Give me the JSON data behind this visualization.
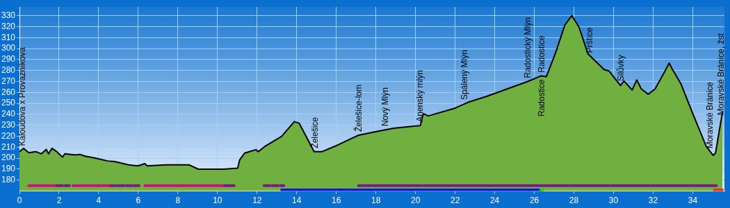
{
  "chart_data": {
    "type": "area",
    "x": [
      0,
      0.21,
      0.47,
      0.82,
      1.11,
      1.35,
      1.47,
      1.64,
      1.88,
      2.17,
      2.29,
      2.81,
      3.05,
      3.28,
      3.87,
      4.45,
      4.81,
      5.51,
      5.98,
      6.33,
      6.45,
      7.39,
      8.56,
      9.03,
      9.26,
      10.32,
      11.02,
      11.12,
      11.37,
      11.61,
      11.94,
      12.06,
      12.41,
      13.24,
      13.88,
      14.12,
      14.88,
      15.29,
      15.94,
      17.12,
      17.94,
      18.88,
      20.0,
      20.24,
      20.39,
      20.65,
      21.94,
      22.65,
      23.59,
      25.67,
      26.32,
      26.61,
      27.08,
      27.54,
      27.89,
      28.25,
      28.71,
      29.53,
      29.77,
      30.35,
      30.53,
      30.94,
      31.17,
      31.4,
      31.75,
      32.1,
      32.57,
      32.81,
      32.98,
      33.39,
      33.98,
      34.68,
      35.03,
      35.15,
      35.38,
      35.5
    ],
    "series": [
      {
        "color": "#6fb040",
        "values": [
          206,
          209,
          205,
          206,
          204,
          208,
          204,
          209,
          206,
          201,
          204,
          203,
          203.5,
          202,
          200,
          197.5,
          197,
          194,
          193,
          195,
          193,
          194,
          194,
          190,
          190,
          190,
          191,
          198.5,
          204.7,
          206,
          207.8,
          206,
          211,
          220,
          233.4,
          232,
          206,
          206,
          211,
          221,
          224,
          227.3,
          229.3,
          229.7,
          240.6,
          238.6,
          245.3,
          251,
          256.4,
          270,
          275,
          274.5,
          296.5,
          321.4,
          330,
          319.8,
          295.1,
          280.7,
          279.6,
          266.3,
          270.4,
          262.2,
          271.4,
          263.2,
          258.4,
          263.2,
          278.6,
          286.8,
          280.7,
          268.3,
          241.6,
          210.8,
          202.6,
          204.7,
          229.3,
          241.6
        ]
      },
      {
        "type": "line",
        "color": "#c8157a",
        "x": [
          0.47,
          1.88,
          2.3,
          2.7,
          4.63,
          5.5,
          6.33,
          10.38
        ],
        "values": [
          175,
          175,
          null,
          175,
          175,
          null,
          175,
          175
        ]
      },
      {
        "type": "line",
        "color": "#7b1a86",
        "x": [
          1.88,
          2.17,
          2.23,
          2.29,
          2.52,
          3.5,
          4.63,
          4.87,
          4.92,
          4.98,
          5.28,
          5.33,
          5.39,
          5.69,
          5.75,
          5.8,
          6.04,
          8.2,
          10.38,
          10.84,
          11.6,
          12.35,
          12.65,
          12.7,
          12.76,
          13.06,
          13.12,
          13.18,
          13.35,
          15.2,
          17.12,
          20.29,
          20.35,
          20.41,
          35.2
        ],
        "values": [
          175,
          175,
          null,
          175,
          175,
          null,
          175,
          175,
          null,
          175,
          175,
          null,
          175,
          175,
          null,
          175,
          175,
          null,
          175,
          175,
          null,
          175,
          175,
          null,
          175,
          175,
          null,
          175,
          175,
          null,
          175,
          175,
          null,
          175,
          175
        ]
      },
      {
        "type": "line",
        "color": "#0a14e6",
        "x": [
          13.24,
          26.32
        ],
        "values": [
          171,
          171
        ]
      },
      {
        "type": "line",
        "color": "#22c81e",
        "x": [
          26.32,
          26.45
        ],
        "values": [
          171,
          171
        ]
      },
      {
        "type": "line",
        "color": "#e8321e",
        "x": [
          35.09,
          35.5
        ],
        "values": [
          171,
          171
        ]
      }
    ],
    "xlim": [
      0,
      35.6
    ],
    "ylim": [
      170,
      338
    ],
    "xticks": [
      0,
      2,
      4,
      6,
      8,
      10,
      12,
      14,
      16,
      18,
      20,
      22,
      24,
      26,
      28,
      30,
      32,
      34
    ],
    "yticks": [
      180,
      190,
      200,
      210,
      220,
      230,
      240,
      250,
      260,
      270,
      280,
      290,
      300,
      310,
      320,
      330
    ],
    "grid": true,
    "legend": false,
    "annotations": [
      {
        "text": "Kaloudova x Provazníkova",
        "x": 0.15,
        "y": 208
      },
      {
        "text": "Želešice",
        "x": 14.95,
        "y": 206
      },
      {
        "text": "Želešice-lom",
        "x": 17.15,
        "y": 221
      },
      {
        "text": "Nový Mlýn",
        "x": 18.5,
        "y": 226
      },
      {
        "text": "Anenský mlýn",
        "x": 20.25,
        "y": 230
      },
      {
        "text": "Spálený Mlýn",
        "x": 22.5,
        "y": 250
      },
      {
        "text": "Radostický Mlýn",
        "x": 25.7,
        "y": 270
      },
      {
        "text": "Radostice",
        "x": 26.4,
        "y": 275
      },
      {
        "text": "Radostice",
        "x": 26.4,
        "y": 275
      },
      {
        "text": "Prštice",
        "x": 28.8,
        "y": 293
      },
      {
        "text": "Silůvky",
        "x": 30.4,
        "y": 267
      },
      {
        "text": "Moravské Bránice",
        "x": 34.9,
        "y": 205.6
      },
      {
        "text": "Moravské Bránice, žst",
        "x": 35.45,
        "y": 236
      }
    ]
  }
}
